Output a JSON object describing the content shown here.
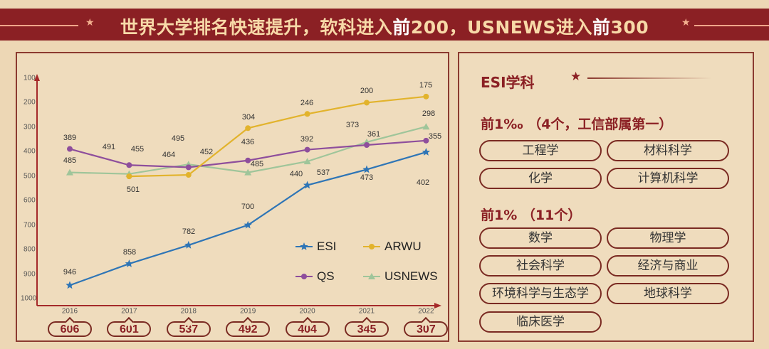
{
  "header": {
    "title_parts": [
      "世界大学排名快速提升，软科进入",
      "前",
      "200，USNEWS进入",
      "前",
      "300"
    ]
  },
  "chart_data": {
    "type": "line",
    "x": [
      "2016",
      "2017",
      "2018",
      "2019",
      "2020",
      "2021",
      "2022"
    ],
    "y_ticks": [
      "100",
      "200",
      "300",
      "400",
      "500",
      "600",
      "700",
      "800",
      "900",
      "1000"
    ],
    "ylim": [
      100,
      1000
    ],
    "y_inverted": true,
    "grid": false,
    "legend_placement": "bottom-right",
    "series": [
      {
        "name": "ESI",
        "color": "#2e75b6",
        "marker": "star",
        "values": [
          946,
          858,
          782,
          700,
          537,
          473,
          402
        ]
      },
      {
        "name": "ARWU",
        "color": "#e2b32c",
        "marker": "circle",
        "values": [
          null,
          501,
          495,
          304,
          246,
          200,
          175
        ]
      },
      {
        "name": "QS",
        "color": "#8e4e9c",
        "marker": "circle",
        "values": [
          389,
          455,
          464,
          436,
          392,
          373,
          355
        ]
      },
      {
        "name": "USNEWS",
        "color": "#9fc59a",
        "marker": "triangle",
        "values": [
          485,
          491,
          452,
          485,
          440,
          361,
          298
        ]
      }
    ],
    "bottom_badges": [
      "606",
      "601",
      "537",
      "492",
      "404",
      "345",
      "307"
    ]
  },
  "right_panel": {
    "title": "ESI学科",
    "sections": [
      {
        "heading": "前1‰ （4个，工信部属第一）",
        "items": [
          "工程学",
          "材料科学",
          "化学",
          "计算机科学"
        ]
      },
      {
        "heading": "前1% （11个）",
        "items": [
          "数学",
          "物理学",
          "社会科学",
          "经济与商业",
          "环境科学与生态学",
          "地球科学",
          "临床医学"
        ]
      }
    ]
  },
  "colors": {
    "accent": "#8b2024",
    "background": "#edd7b5"
  }
}
